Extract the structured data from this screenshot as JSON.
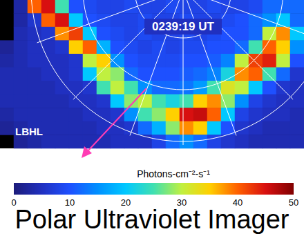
{
  "chart_data": {
    "type": "heatmap",
    "title": "Polar Ultraviolet Imager",
    "annotations": [
      "0239:19 UT",
      "LBHL"
    ],
    "tick_labels": false,
    "cells": [
      [
        null,
        3,
        40,
        45,
        25,
        10,
        9,
        8,
        8,
        9,
        8,
        8,
        9,
        8,
        8,
        9,
        8,
        8,
        9,
        12,
        12,
        12
      ],
      [
        null,
        3,
        6,
        40,
        45,
        20,
        10,
        9,
        8,
        8,
        9,
        8,
        8,
        9,
        8,
        8,
        9,
        10,
        12,
        15,
        20,
        12
      ],
      [
        null,
        4,
        5,
        6,
        38,
        42,
        20,
        10,
        9,
        8,
        9,
        8,
        8,
        9,
        8,
        9,
        10,
        10,
        12,
        30,
        38,
        20
      ],
      [
        2,
        4,
        5,
        5,
        6,
        35,
        40,
        18,
        10,
        9,
        8,
        9,
        8,
        9,
        9,
        10,
        10,
        12,
        25,
        40,
        35,
        15
      ],
      [
        3,
        4,
        5,
        5,
        5,
        6,
        30,
        35,
        15,
        10,
        9,
        9,
        9,
        10,
        10,
        11,
        14,
        30,
        42,
        44,
        30,
        10
      ],
      [
        4,
        4,
        4,
        5,
        5,
        6,
        20,
        30,
        28,
        12,
        10,
        10,
        10,
        11,
        12,
        14,
        22,
        38,
        40,
        25,
        12,
        6
      ],
      [
        4,
        4,
        4,
        4,
        5,
        5,
        6,
        25,
        30,
        25,
        15,
        12,
        12,
        13,
        16,
        25,
        32,
        30,
        20,
        10,
        6,
        5
      ],
      [
        4,
        4,
        4,
        4,
        4,
        5,
        5,
        6,
        20,
        28,
        30,
        25,
        22,
        25,
        35,
        38,
        28,
        15,
        8,
        6,
        5,
        5
      ],
      [
        3,
        4,
        4,
        4,
        4,
        4,
        5,
        5,
        6,
        15,
        25,
        28,
        35,
        45,
        46,
        40,
        20,
        8,
        6,
        5,
        5,
        4
      ],
      [
        2,
        3,
        4,
        4,
        4,
        4,
        4,
        5,
        5,
        6,
        12,
        18,
        28,
        38,
        35,
        20,
        10,
        6,
        5,
        4,
        4,
        4
      ],
      [
        null,
        2,
        3,
        4,
        4,
        4,
        4,
        4,
        5,
        5,
        5,
        8,
        12,
        15,
        12,
        8,
        6,
        5,
        4,
        4,
        4,
        4
      ]
    ],
    "colorbar": {
      "label": "Photons-cm⁻²-s⁻¹",
      "range": [
        0,
        50
      ],
      "ticks": [
        0,
        10,
        20,
        30,
        40,
        50
      ]
    }
  }
}
